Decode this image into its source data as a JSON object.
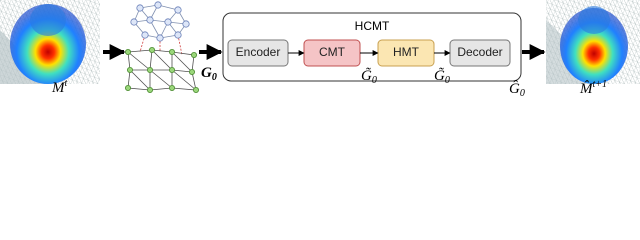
{
  "inputs": {
    "label": {
      "base": "M",
      "sup": "t"
    }
  },
  "graph": {
    "label": {
      "base": "G",
      "sub": "0"
    }
  },
  "model": {
    "title": "HCMT",
    "modules": [
      "Encoder",
      "CMT",
      "HMT",
      "Decoder"
    ],
    "intermediates": [
      {
        "base": "G̃",
        "sub": "0"
      },
      {
        "base": "G̃",
        "sub": "0"
      }
    ]
  },
  "output_graph": {
    "base": "Ĝ",
    "sub": "0"
  },
  "output": {
    "label": {
      "base": "M̂",
      "sup": "t+1"
    }
  }
}
